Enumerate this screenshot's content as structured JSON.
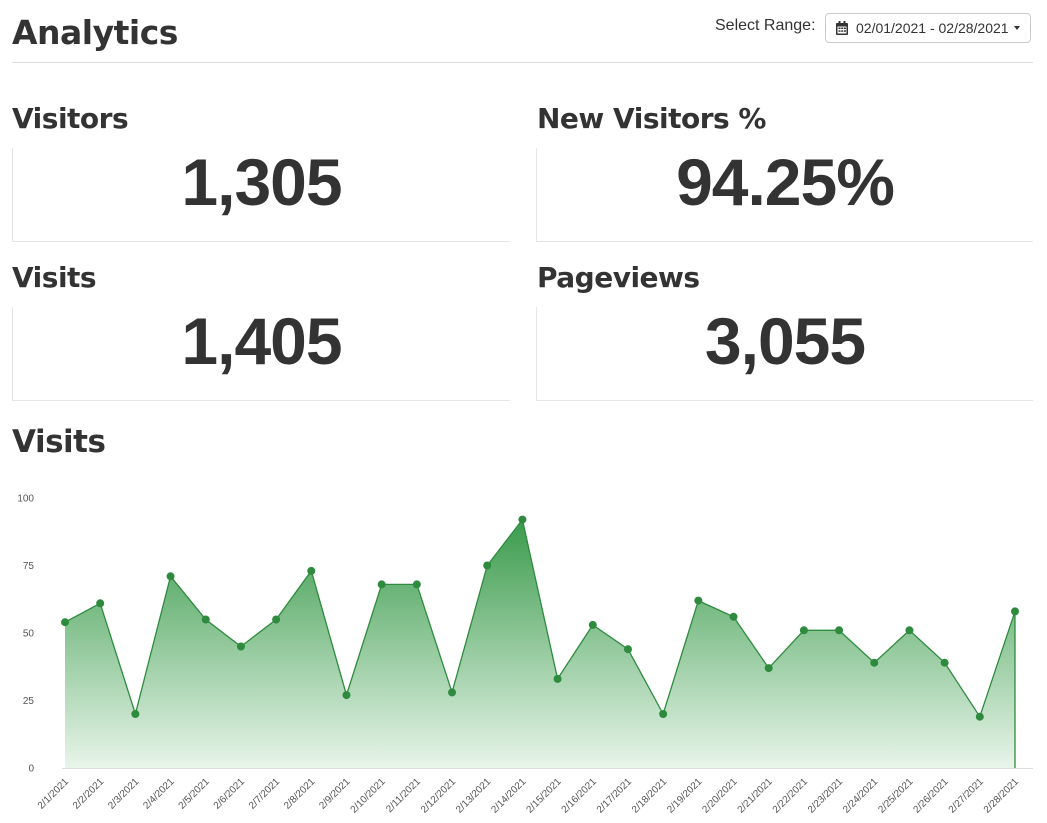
{
  "header": {
    "title": "Analytics",
    "range_label": "Select Range:",
    "range_value": "02/01/2021 - 02/28/2021",
    "calendar_icon": "calendar-icon",
    "caret_icon": "caret-down-icon"
  },
  "stats": {
    "visitors": {
      "label": "Visitors",
      "value": "1,305"
    },
    "new_visitors": {
      "label": "New Visitors %",
      "value": "94.25%"
    },
    "visits": {
      "label": "Visits",
      "value": "1,405"
    },
    "pageviews": {
      "label": "Pageviews",
      "value": "3,055"
    }
  },
  "colors": {
    "line": "#2e8b3e",
    "fill_top": "#3b9b4c",
    "fill_bottom": "#e8f5ea",
    "text": "#333333"
  },
  "chart_data": {
    "type": "area",
    "title": "Visits",
    "xlabel": "",
    "ylabel": "",
    "ylim": [
      0,
      100
    ],
    "yticks": [
      0,
      25,
      50,
      75,
      100
    ],
    "grid": false,
    "categories": [
      "2/1/2021",
      "2/2/2021",
      "2/3/2021",
      "2/4/2021",
      "2/5/2021",
      "2/6/2021",
      "2/7/2021",
      "2/8/2021",
      "2/9/2021",
      "2/10/2021",
      "2/11/2021",
      "2/12/2021",
      "2/13/2021",
      "2/14/2021",
      "2/15/2021",
      "2/16/2021",
      "2/17/2021",
      "2/18/2021",
      "2/19/2021",
      "2/20/2021",
      "2/21/2021",
      "2/22/2021",
      "2/23/2021",
      "2/24/2021",
      "2/25/2021",
      "2/26/2021",
      "2/27/2021",
      "2/28/2021"
    ],
    "series": [
      {
        "values": [
          54,
          61,
          20,
          71,
          55,
          45,
          55,
          73,
          27,
          68,
          68,
          28,
          75,
          92,
          33,
          53,
          44,
          20,
          62,
          56,
          37,
          51,
          51,
          39,
          51,
          39,
          19,
          58
        ]
      }
    ]
  }
}
